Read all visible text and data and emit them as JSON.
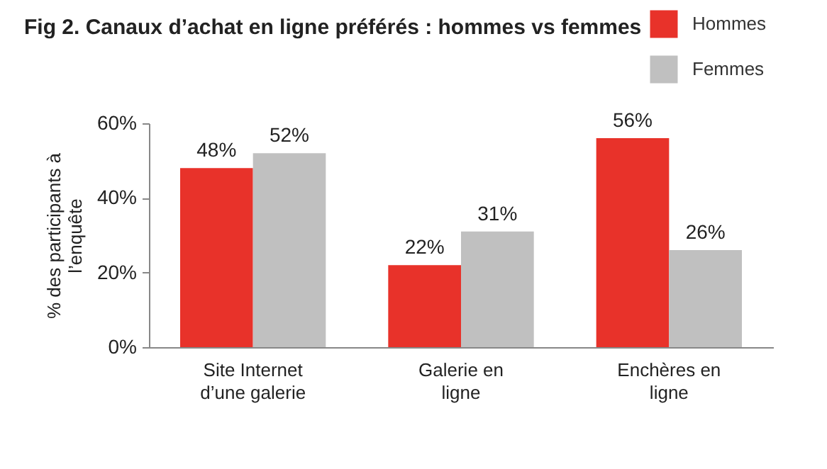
{
  "chart_data": {
    "type": "bar",
    "title": "Fig 2. Canaux d’achat en ligne préférés : hommes vs femmes",
    "ylabel": "% des participants à l’enquête",
    "categories": [
      "Site Internet d’une galerie",
      "Galerie en ligne",
      "Enchères en ligne"
    ],
    "series": [
      {
        "name": "Hommes",
        "color": "#e8322a",
        "values": [
          48,
          22,
          56
        ],
        "value_labels": [
          "48%",
          "22%",
          "56%"
        ]
      },
      {
        "name": "Femmes",
        "color": "#c0c0c0",
        "values": [
          52,
          31,
          26
        ],
        "value_labels": [
          "52%",
          "31%",
          "26%"
        ]
      }
    ],
    "ylim": [
      0,
      60
    ],
    "yticks": [
      {
        "value": 0,
        "label": "0%"
      },
      {
        "value": 20,
        "label": "20%"
      },
      {
        "value": 40,
        "label": "40%"
      },
      {
        "value": 60,
        "label": "60%"
      }
    ],
    "grid": false,
    "legend": "top right"
  }
}
